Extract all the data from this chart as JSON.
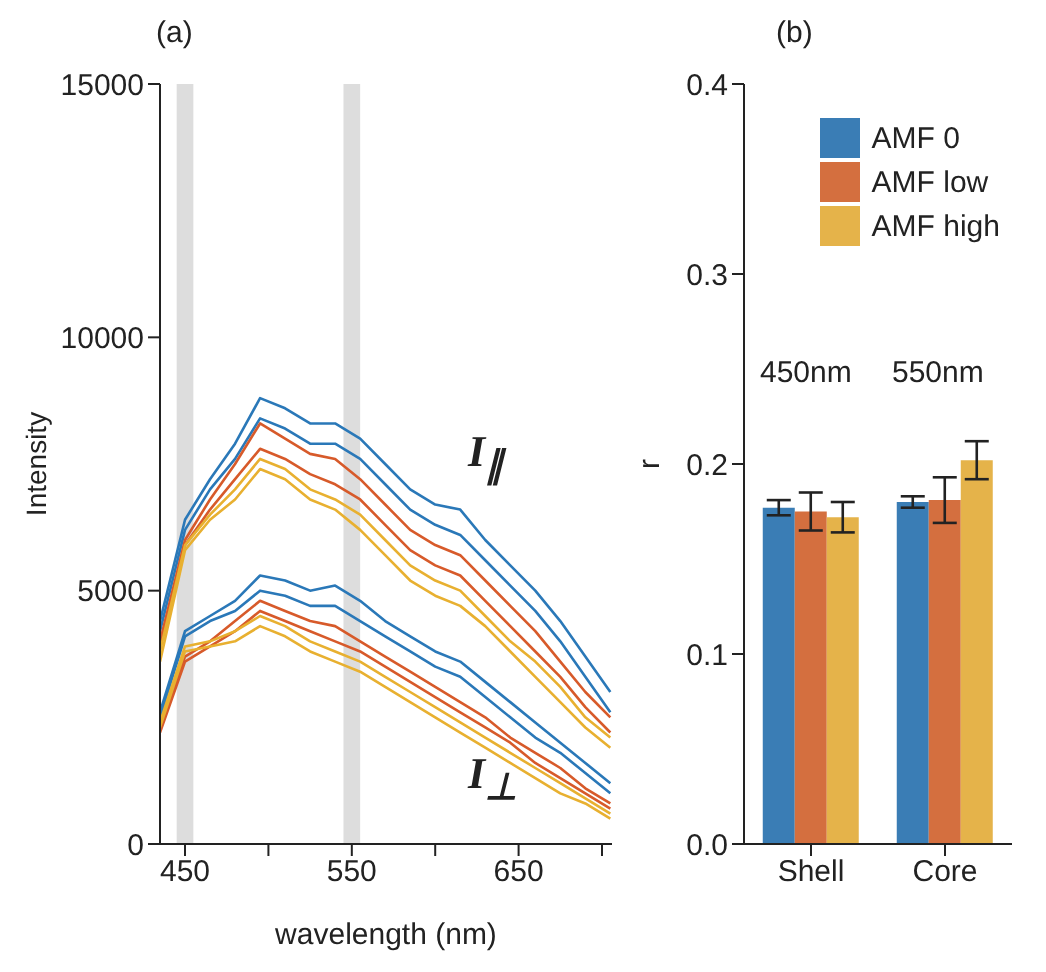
{
  "chart_data": [
    {
      "type": "line",
      "title": "(a)",
      "xlabel": "wavelength (nm)",
      "ylabel": "Intensity",
      "x": [
        435,
        450,
        465,
        480,
        495,
        510,
        525,
        540,
        555,
        570,
        585,
        600,
        615,
        630,
        645,
        660,
        675,
        690,
        705
      ],
      "xlim": [
        435,
        706
      ],
      "xticks": [
        450,
        {
          "value": 500,
          "label": null
        },
        550,
        {
          "value": 600,
          "label": null
        },
        650,
        {
          "value": 700,
          "label": null
        }
      ],
      "ylim": [
        0,
        15000
      ],
      "yticks": [
        0,
        5000,
        10000,
        15000
      ],
      "grid": false,
      "legend": false,
      "marker": "none",
      "line_style": "solid",
      "bands": [
        {
          "axis": "x",
          "from": 445,
          "to": 455,
          "color": "#dddddd"
        },
        {
          "axis": "x",
          "from": 545,
          "to": 555,
          "color": "#dddddd"
        }
      ],
      "annotations": [
        "I$_{∥}$",
        "I$_{⊥}$"
      ],
      "series": [
        {
          "color": "#2a78b8",
          "values": [
            4400,
            6400,
            7200,
            7900,
            8800,
            8600,
            8300,
            8300,
            8000,
            7500,
            7000,
            6700,
            6600,
            6000,
            5500,
            5000,
            4400,
            3700,
            3000
          ]
        },
        {
          "color": "#2a78b8",
          "values": [
            4200,
            6200,
            7000,
            7600,
            8400,
            8200,
            7900,
            7900,
            7600,
            7100,
            6600,
            6300,
            6100,
            5600,
            5100,
            4600,
            4000,
            3300,
            2600
          ]
        },
        {
          "color": "#d75a2a",
          "values": [
            4000,
            6000,
            6800,
            7500,
            8300,
            8000,
            7700,
            7600,
            7200,
            6700,
            6200,
            5900,
            5700,
            5200,
            4700,
            4200,
            3600,
            3000,
            2500
          ]
        },
        {
          "color": "#d75a2a",
          "values": [
            3900,
            5900,
            6600,
            7200,
            7800,
            7600,
            7300,
            7100,
            6800,
            6300,
            5800,
            5500,
            5300,
            4800,
            4300,
            3800,
            3300,
            2700,
            2200
          ]
        },
        {
          "color": "#e8b030",
          "values": [
            3800,
            5900,
            6500,
            7000,
            7600,
            7400,
            7000,
            6800,
            6500,
            6000,
            5500,
            5200,
            5000,
            4500,
            4000,
            3600,
            3100,
            2500,
            2100
          ]
        },
        {
          "color": "#e8b030",
          "values": [
            3600,
            5800,
            6400,
            6800,
            7400,
            7200,
            6800,
            6600,
            6200,
            5700,
            5200,
            4900,
            4700,
            4300,
            3800,
            3300,
            2800,
            2300,
            1900
          ]
        },
        {
          "color": "#2a78b8",
          "values": [
            2600,
            4200,
            4500,
            4800,
            5300,
            5200,
            5000,
            5100,
            4800,
            4400,
            4100,
            3800,
            3600,
            3200,
            2800,
            2400,
            2000,
            1600,
            1200
          ]
        },
        {
          "color": "#2a78b8",
          "values": [
            2500,
            4100,
            4400,
            4600,
            5000,
            4900,
            4700,
            4700,
            4400,
            4100,
            3800,
            3500,
            3300,
            2900,
            2500,
            2100,
            1800,
            1400,
            1000
          ]
        },
        {
          "color": "#d75a2a",
          "values": [
            2300,
            3700,
            4000,
            4400,
            4800,
            4600,
            4400,
            4300,
            4000,
            3700,
            3400,
            3100,
            2800,
            2500,
            2100,
            1800,
            1500,
            1100,
            800
          ]
        },
        {
          "color": "#d75a2a",
          "values": [
            2200,
            3600,
            3900,
            4200,
            4600,
            4400,
            4200,
            4000,
            3800,
            3500,
            3200,
            2900,
            2600,
            2300,
            2000,
            1600,
            1300,
            1000,
            700
          ]
        },
        {
          "color": "#e8b030",
          "values": [
            2400,
            3900,
            4000,
            4200,
            4500,
            4300,
            4000,
            3800,
            3600,
            3300,
            3000,
            2700,
            2400,
            2100,
            1800,
            1500,
            1200,
            900,
            600
          ]
        },
        {
          "color": "#e8b030",
          "values": [
            2300,
            3800,
            3900,
            4000,
            4300,
            4100,
            3800,
            3600,
            3400,
            3100,
            2800,
            2500,
            2200,
            1900,
            1600,
            1300,
            1000,
            800,
            500
          ]
        }
      ]
    },
    {
      "type": "bar",
      "title": "(b)",
      "ylabel": "r",
      "categories": [
        "Shell",
        "Core"
      ],
      "ylim": [
        0,
        0.4
      ],
      "yticks": [
        {
          "value": 0,
          "label": "0.0"
        },
        0.1,
        0.2,
        0.3,
        0.4
      ],
      "grid": false,
      "legend": "top right",
      "annotations": [
        "450nm",
        "550nm"
      ],
      "series": [
        {
          "name": "AMF 0",
          "color": "#3a7db5",
          "values": [
            0.177,
            0.18
          ],
          "errors": [
            0.004,
            0.003
          ]
        },
        {
          "name": "AMF low",
          "color": "#d46f3f",
          "values": [
            0.175,
            0.181
          ],
          "errors": [
            0.01,
            0.012
          ]
        },
        {
          "name": "AMF high",
          "color": "#e5b34a",
          "values": [
            0.172,
            0.202
          ],
          "errors": [
            0.008,
            0.01
          ]
        }
      ]
    }
  ]
}
